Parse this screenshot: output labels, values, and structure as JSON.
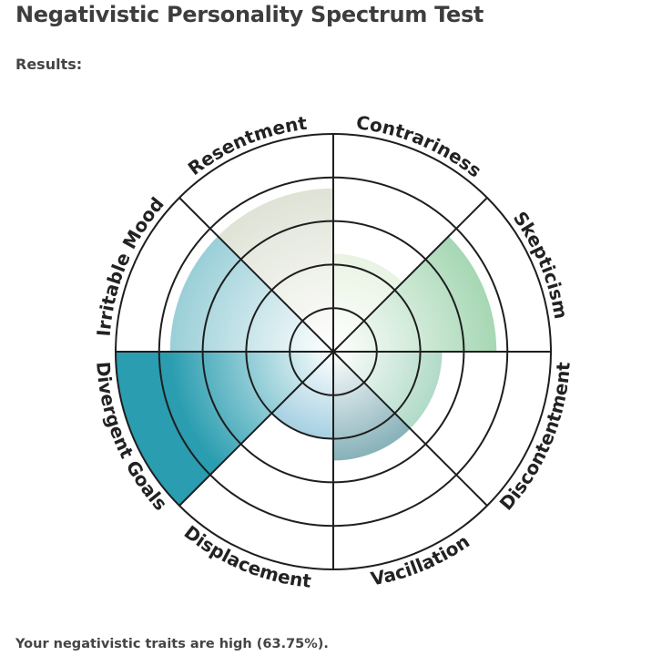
{
  "title": "Negativistic Personality Spectrum Test",
  "results_label": "Results:",
  "summary": "Your negativistic traits are high (63.75%).",
  "chart_data": {
    "type": "polar-area",
    "categories": [
      "Contrariness",
      "Skepticism",
      "Discontentment",
      "Vacillation",
      "Displacement",
      "Divergent Goals",
      "Irritable Mood",
      "Resentment"
    ],
    "values": [
      45,
      75,
      50,
      50,
      40,
      100,
      75,
      75
    ],
    "rlim": [
      0,
      100
    ],
    "ring_ticks": [
      20,
      40,
      60,
      80,
      100
    ],
    "colors": [
      "#d9ecd0",
      "#a6d7b4",
      "#8ac8ad",
      "#4b8a96",
      "#57a7c8",
      "#2a9db0",
      "#9acfd8",
      "#dfe3d6"
    ],
    "grid": true
  }
}
